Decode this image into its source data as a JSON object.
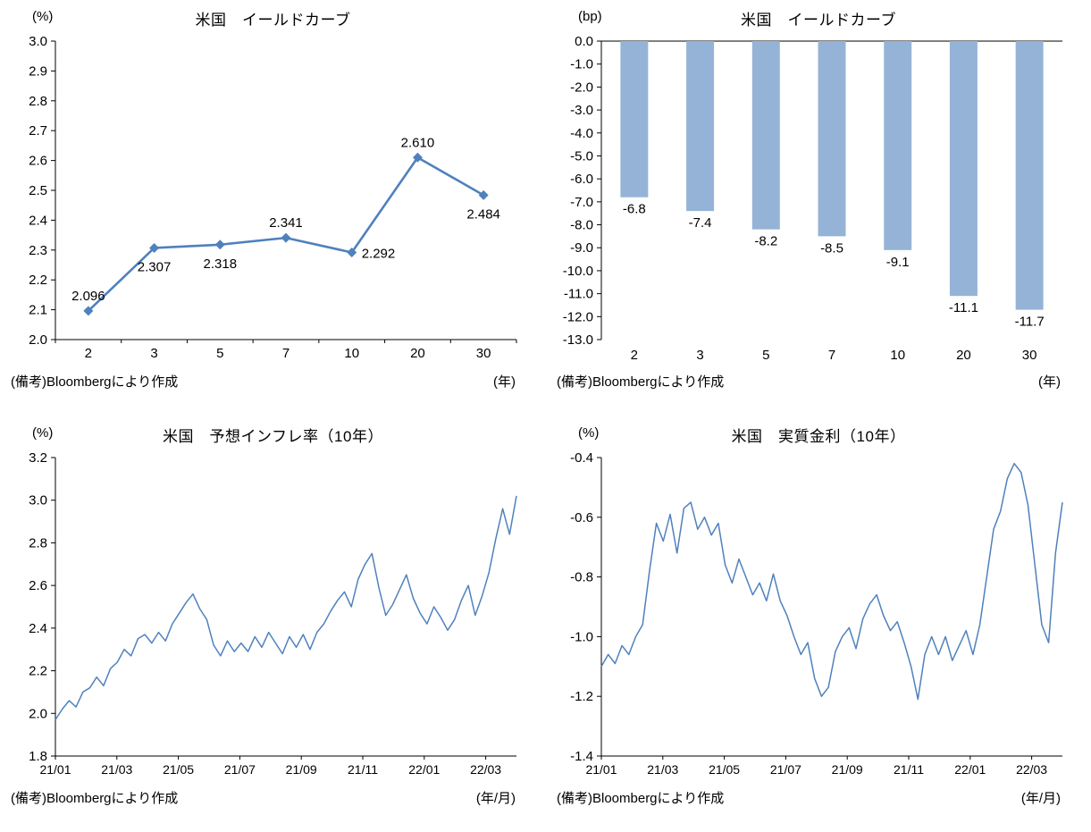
{
  "chart_data": [
    {
      "type": "line",
      "title": "米国　イールドカーブ",
      "y_unit": "(%)",
      "x_unit": "(年)",
      "note": "(備考)Bloombergにより作成",
      "categories": [
        "2",
        "3",
        "5",
        "7",
        "10",
        "20",
        "30"
      ],
      "values": [
        2.096,
        2.307,
        2.318,
        2.341,
        2.292,
        2.61,
        2.484
      ],
      "point_labels": [
        "2.096",
        "2.307",
        "2.318",
        "2.341",
        "2.292",
        "2.610",
        "2.484"
      ],
      "label_pos": [
        "above",
        "below",
        "below",
        "above",
        "right",
        "above",
        "below"
      ],
      "ylim": [
        2.0,
        3.0
      ],
      "ytick": 0.1,
      "color": "#4f81bd",
      "marker": "diamond",
      "xlabel": "年",
      "ylabel": "%"
    },
    {
      "type": "bar",
      "title": "米国　イールドカーブ",
      "y_unit": "(bp)",
      "x_unit": "(年)",
      "note": "(備考)Bloombergにより作成",
      "categories": [
        "2",
        "3",
        "5",
        "7",
        "10",
        "20",
        "30"
      ],
      "values": [
        -6.8,
        -7.4,
        -8.2,
        -8.5,
        -9.1,
        -11.1,
        -11.7
      ],
      "point_labels": [
        "-6.8",
        "-7.4",
        "-8.2",
        "-8.5",
        "-9.1",
        "-11.1",
        "-11.7"
      ],
      "ylim": [
        -13.0,
        0.0
      ],
      "ytick": 1.0,
      "bar_color": "#95b3d7",
      "xlabel": "年",
      "ylabel": "bp"
    },
    {
      "type": "timeseries",
      "title": "米国　予想インフレ率（10年）",
      "y_unit": "(%)",
      "x_unit": "(年/月)",
      "note": "(備考)Bloombergにより作成",
      "x_ticks": [
        "21/01",
        "21/03",
        "21/05",
        "21/07",
        "21/09",
        "21/11",
        "22/01",
        "22/03"
      ],
      "x_tick_months": [
        0,
        2,
        4,
        6,
        8,
        10,
        12,
        14
      ],
      "x_total_months": 15,
      "ylim": [
        1.8,
        3.2
      ],
      "ytick": 0.2,
      "color": "#4f81bd",
      "xlabel": "年/月",
      "ylabel": "%",
      "values": [
        1.97,
        2.02,
        2.06,
        2.03,
        2.1,
        2.12,
        2.17,
        2.13,
        2.21,
        2.24,
        2.3,
        2.27,
        2.35,
        2.37,
        2.33,
        2.38,
        2.34,
        2.42,
        2.47,
        2.52,
        2.56,
        2.49,
        2.44,
        2.32,
        2.27,
        2.34,
        2.29,
        2.33,
        2.29,
        2.36,
        2.31,
        2.38,
        2.33,
        2.28,
        2.36,
        2.31,
        2.37,
        2.3,
        2.38,
        2.42,
        2.48,
        2.53,
        2.57,
        2.5,
        2.63,
        2.7,
        2.75,
        2.59,
        2.46,
        2.51,
        2.58,
        2.65,
        2.54,
        2.47,
        2.42,
        2.5,
        2.45,
        2.39,
        2.44,
        2.53,
        2.6,
        2.46,
        2.55,
        2.66,
        2.82,
        2.96,
        2.84,
        3.02
      ]
    },
    {
      "type": "timeseries",
      "title": "米国　実質金利（10年）",
      "y_unit": "(%)",
      "x_unit": "(年/月)",
      "note": "(備考)Bloombergにより作成",
      "x_ticks": [
        "21/01",
        "21/03",
        "21/05",
        "21/07",
        "21/09",
        "21/11",
        "22/01",
        "22/03"
      ],
      "x_tick_months": [
        0,
        2,
        4,
        6,
        8,
        10,
        12,
        14
      ],
      "x_total_months": 15,
      "ylim": [
        -1.4,
        -0.4
      ],
      "ytick": 0.2,
      "color": "#4f81bd",
      "xlabel": "年/月",
      "ylabel": "%",
      "values": [
        -1.1,
        -1.06,
        -1.09,
        -1.03,
        -1.06,
        -1.0,
        -0.96,
        -0.78,
        -0.62,
        -0.68,
        -0.59,
        -0.72,
        -0.57,
        -0.55,
        -0.64,
        -0.6,
        -0.66,
        -0.62,
        -0.76,
        -0.82,
        -0.74,
        -0.8,
        -0.86,
        -0.82,
        -0.88,
        -0.79,
        -0.88,
        -0.93,
        -1.0,
        -1.06,
        -1.02,
        -1.14,
        -1.2,
        -1.17,
        -1.05,
        -1.0,
        -0.97,
        -1.04,
        -0.94,
        -0.89,
        -0.86,
        -0.93,
        -0.98,
        -0.95,
        -1.02,
        -1.1,
        -1.21,
        -1.06,
        -1.0,
        -1.06,
        -1.0,
        -1.08,
        -1.03,
        -0.98,
        -1.06,
        -0.96,
        -0.8,
        -0.64,
        -0.58,
        -0.47,
        -0.42,
        -0.45,
        -0.56,
        -0.76,
        -0.96,
        -1.02,
        -0.72,
        -0.55
      ]
    }
  ]
}
